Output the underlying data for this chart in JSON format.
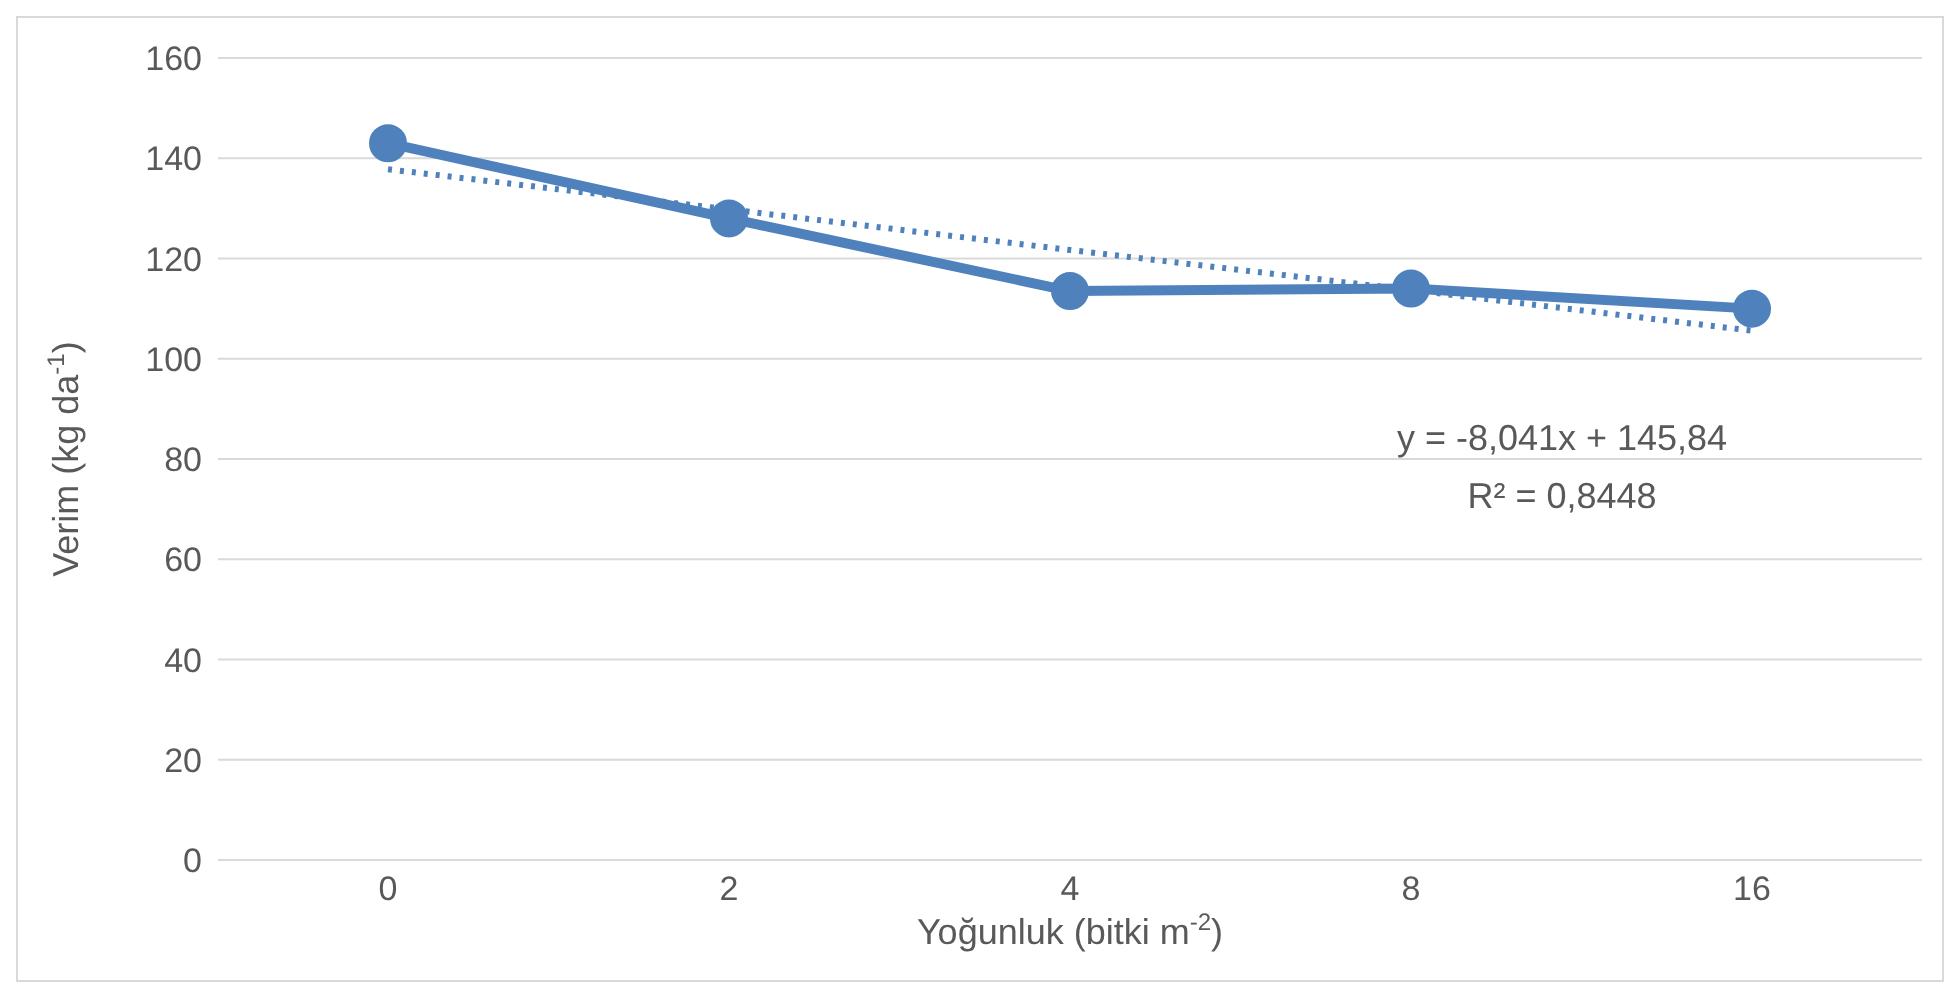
{
  "chart_data": {
    "type": "line",
    "xlabel": "Yoğunluk (bitki m$^{-2}$)",
    "ylabel": "Verim (kg da$^{-1}$)",
    "categories": [
      "0",
      "2",
      "4",
      "8",
      "16"
    ],
    "series": [
      {
        "color": "#4f81bd",
        "values": [
          143,
          128,
          113.5,
          114,
          110
        ],
        "marker": "circle",
        "line_style": "solid"
      },
      {
        "type": "line",
        "color": "#4f81bd",
        "values": [
          137.8,
          129.8,
          121.7,
          113.7,
          105.6
        ],
        "marker": "none",
        "line_style": "dotted"
      }
    ],
    "ylim": [
      0,
      160
    ],
    "yticks": [
      0,
      20,
      40,
      60,
      80,
      100,
      120,
      140,
      160
    ],
    "grid": "y",
    "annotations": [
      "y = -8,041x + 145,84",
      "R² = 0,8448"
    ]
  }
}
